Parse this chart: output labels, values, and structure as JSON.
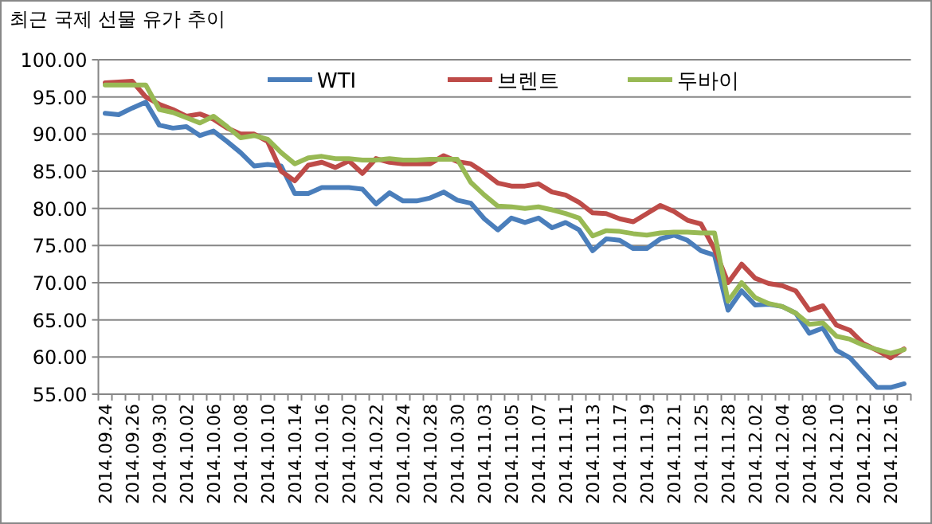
{
  "chart_data": {
    "type": "line",
    "title": "최근 국제 선물 유가 추이",
    "categories": [
      "2014.09.24",
      null,
      "2014.09.26",
      null,
      "2014.09.30",
      null,
      "2014.10.02",
      null,
      "2014.10.06",
      null,
      "2014.10.08",
      null,
      "2014.10.10",
      null,
      "2014.10.14",
      null,
      "2014.10.16",
      null,
      "2014.10.20",
      null,
      "2014.10.22",
      null,
      "2014.10.24",
      null,
      "2014.10.28",
      null,
      "2014.10.30",
      null,
      "2014.11.03",
      null,
      "2014.11.05",
      null,
      "2014.11.07",
      null,
      "2014.11.11",
      null,
      "2014.11.13",
      null,
      "2014.11.17",
      null,
      "2014.11.19",
      null,
      "2014.11.21",
      null,
      "2014.11.25",
      null,
      "2014.11.28",
      null,
      "2014.12.02",
      null,
      "2014.12.04",
      null,
      "2014.12.08",
      null,
      "2014.12.10",
      null,
      "2014.12.12",
      null,
      "2014.12.16",
      null
    ],
    "series": [
      {
        "name": "WTI",
        "color": "#4a7ebb",
        "values": [
          92.8,
          92.6,
          93.5,
          94.3,
          91.2,
          90.8,
          91.0,
          89.8,
          90.4,
          89.0,
          87.5,
          85.7,
          85.9,
          85.7,
          82.0,
          82.0,
          82.8,
          82.8,
          82.8,
          82.6,
          80.6,
          82.1,
          81.0,
          81.0,
          81.4,
          82.2,
          81.1,
          80.7,
          78.6,
          77.1,
          78.7,
          78.1,
          78.7,
          77.4,
          78.1,
          77.1,
          74.3,
          75.9,
          75.7,
          74.6,
          74.6,
          75.9,
          76.4,
          75.7,
          74.3,
          73.7,
          66.3,
          68.9,
          67.0,
          67.1,
          66.8,
          65.9,
          63.2,
          63.9,
          60.9,
          59.9,
          57.9,
          55.9,
          55.9,
          56.4
        ]
      },
      {
        "name": "브렌트",
        "color": "#be4b48",
        "values": [
          96.9,
          97.0,
          97.1,
          95.0,
          94.0,
          93.3,
          92.4,
          92.7,
          92.0,
          90.8,
          90.0,
          90.0,
          89.0,
          85.0,
          83.7,
          85.8,
          86.2,
          85.5,
          86.4,
          84.7,
          86.7,
          86.2,
          86.0,
          86.0,
          86.0,
          87.1,
          86.3,
          86.0,
          84.8,
          83.4,
          83.0,
          83.0,
          83.3,
          82.2,
          81.8,
          80.8,
          79.4,
          79.3,
          78.6,
          78.2,
          79.3,
          80.4,
          79.6,
          78.4,
          77.9,
          74.5,
          70.0,
          72.5,
          70.6,
          69.9,
          69.6,
          68.9,
          66.3,
          66.9,
          64.3,
          63.6,
          61.8,
          60.9,
          59.9,
          61.1
        ]
      },
      {
        "name": "두바이",
        "color": "#98b954",
        "values": [
          96.6,
          96.6,
          96.6,
          96.6,
          93.3,
          92.9,
          92.2,
          91.5,
          92.4,
          91.0,
          89.5,
          89.8,
          89.3,
          87.5,
          86.0,
          86.8,
          87.0,
          86.7,
          86.7,
          86.5,
          86.5,
          86.7,
          86.5,
          86.5,
          86.6,
          86.6,
          86.6,
          83.5,
          81.8,
          80.3,
          80.2,
          80.0,
          80.2,
          79.8,
          79.3,
          78.7,
          76.3,
          77.0,
          76.9,
          76.6,
          76.4,
          76.7,
          76.8,
          76.8,
          76.7,
          76.7,
          67.5,
          70.0,
          68.0,
          67.2,
          66.8,
          65.9,
          64.4,
          64.6,
          62.8,
          62.4,
          61.6,
          61.0,
          60.5,
          61.0
        ]
      }
    ],
    "ylim": [
      55,
      100
    ],
    "yticks": [
      {
        "value": 55,
        "label": "55.00"
      },
      {
        "value": 60,
        "label": "60.00"
      },
      {
        "value": 65,
        "label": "65.00"
      },
      {
        "value": 70,
        "label": "70.00"
      },
      {
        "value": 75,
        "label": "75.00"
      },
      {
        "value": 80,
        "label": "80.00"
      },
      {
        "value": 85,
        "label": "85.00"
      },
      {
        "value": 90,
        "label": "90.00"
      },
      {
        "value": 95,
        "label": "95.00"
      },
      {
        "value": 100,
        "label": "100.00"
      }
    ],
    "grid": "y",
    "legend": "top",
    "marker": "none",
    "line_style": "solid"
  }
}
